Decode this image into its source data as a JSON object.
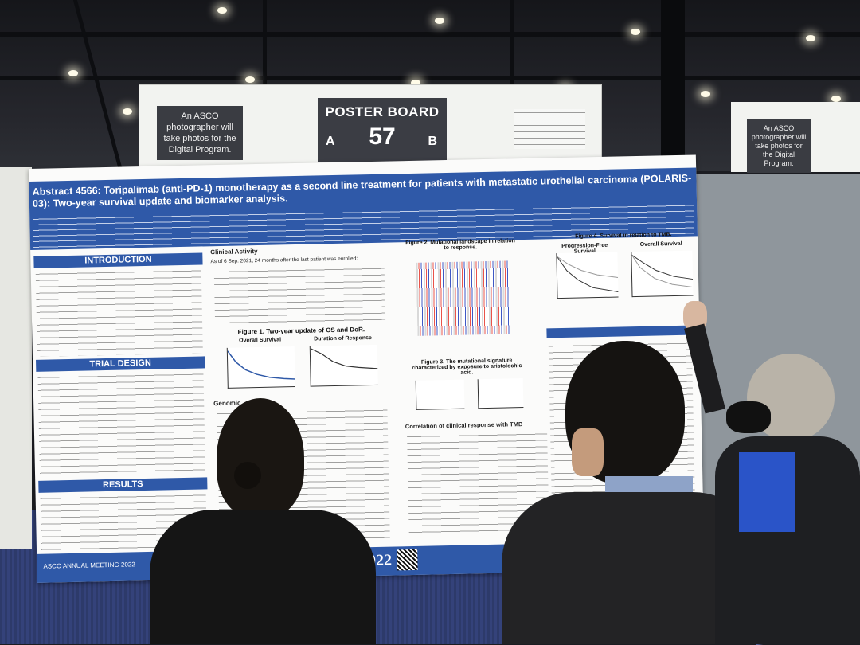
{
  "sign": {
    "photographer_note": "An ASCO photographer will take photos for the Digital Program.",
    "board_title": "POSTER BOARD",
    "board_left": "A",
    "board_number": "57",
    "board_right": "B"
  },
  "sign_right": {
    "photographer_note": "An ASCO photographer will take photos for the Digital Program."
  },
  "poster": {
    "title": "Abstract 4566: Toripalimab (anti-PD-1) monotherapy as a second line treatment for patients with metastatic urothelial carcinoma (POLARIS-03): Two-year survival update and biomarker analysis.",
    "sections": {
      "introduction": "INTRODUCTION",
      "trial_design": "TRIAL DESIGN",
      "results": "RESULTS",
      "clinical_activity": "Clinical Activity",
      "genomic": "Genomic",
      "correlation_tmb": "Correlation of clinical response with TMB"
    },
    "figures": {
      "fig1": "Figure 1. Two-year update of OS and DoR.",
      "fig1_a": "Overall Survival",
      "fig1_b": "Duration of Response",
      "fig2": "Figure 2. Mutational landscape in relation to response.",
      "fig3": "Figure 3. The mutational signature characterized by exposure to aristolochic acid.",
      "fig4": "Figure 4. Survival in relation to TMB.",
      "fig4_a": "Progression-Free Survival",
      "fig4_b": "Overall Survival"
    },
    "clinical_text": "As of 6 Sep. 2021, 24 months after the last patient was enrolled:",
    "footer": "ASCO2022",
    "footer_left": "ASCO ANNUAL MEETING 2022"
  }
}
